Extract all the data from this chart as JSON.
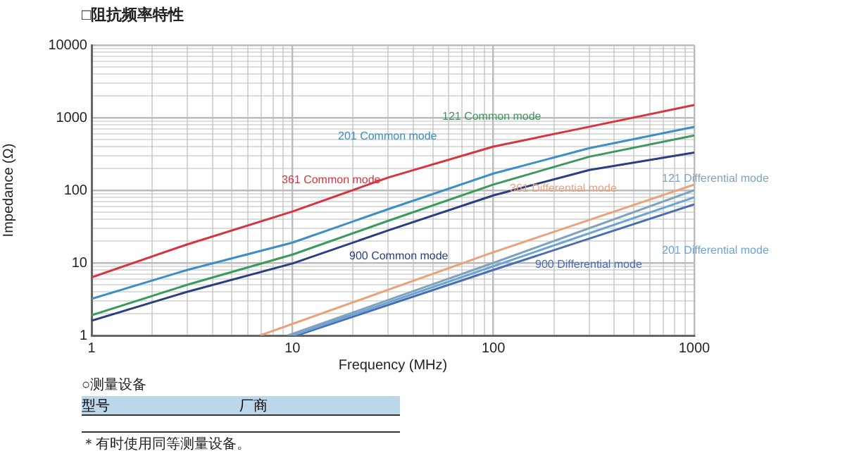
{
  "chart_data": {
    "type": "line",
    "title": "□阻抗频率特性",
    "xlabel": "Frequency (MHz)",
    "ylabel": "Impedance (Ω)",
    "log": "xy",
    "grid": true,
    "legend": false,
    "marker": "none",
    "line_style": "solid",
    "xlim": [
      1,
      1000
    ],
    "ylim": [
      1,
      10000
    ],
    "xticks": [
      1,
      {
        "value": 2,
        "label": null
      },
      {
        "value": 3,
        "label": null
      },
      {
        "value": 4,
        "label": null
      },
      {
        "value": 5,
        "label": null
      },
      {
        "value": 6,
        "label": null
      },
      {
        "value": 7,
        "label": null
      },
      {
        "value": 8,
        "label": null
      },
      {
        "value": 9,
        "label": null
      },
      10,
      {
        "value": 20,
        "label": null
      },
      {
        "value": 30,
        "label": null
      },
      {
        "value": 40,
        "label": null
      },
      {
        "value": 50,
        "label": null
      },
      {
        "value": 60,
        "label": null
      },
      {
        "value": 70,
        "label": null
      },
      {
        "value": 80,
        "label": null
      },
      {
        "value": 90,
        "label": null
      },
      100,
      {
        "value": 200,
        "label": null
      },
      {
        "value": 300,
        "label": null
      },
      {
        "value": 400,
        "label": null
      },
      {
        "value": 500,
        "label": null
      },
      {
        "value": 600,
        "label": null
      },
      {
        "value": 700,
        "label": null
      },
      {
        "value": 800,
        "label": null
      },
      {
        "value": 900,
        "label": null
      },
      1000
    ],
    "yticks": [
      1,
      {
        "value": 2,
        "label": null
      },
      {
        "value": 3,
        "label": null
      },
      {
        "value": 4,
        "label": null
      },
      {
        "value": 5,
        "label": null
      },
      {
        "value": 6,
        "label": null
      },
      {
        "value": 7,
        "label": null
      },
      {
        "value": 8,
        "label": null
      },
      {
        "value": 9,
        "label": null
      },
      10,
      {
        "value": 20,
        "label": null
      },
      {
        "value": 30,
        "label": null
      },
      {
        "value": 40,
        "label": null
      },
      {
        "value": 50,
        "label": null
      },
      {
        "value": 60,
        "label": null
      },
      {
        "value": 70,
        "label": null
      },
      {
        "value": 80,
        "label": null
      },
      {
        "value": 90,
        "label": null
      },
      100,
      {
        "value": 200,
        "label": null
      },
      {
        "value": 300,
        "label": null
      },
      {
        "value": 400,
        "label": null
      },
      {
        "value": 500,
        "label": null
      },
      {
        "value": 600,
        "label": null
      },
      {
        "value": 700,
        "label": null
      },
      {
        "value": 800,
        "label": null
      },
      {
        "value": 900,
        "label": null
      },
      1000,
      {
        "value": 2000,
        "label": null
      },
      {
        "value": 3000,
        "label": null
      },
      {
        "value": 4000,
        "label": null
      },
      {
        "value": 5000,
        "label": null
      },
      {
        "value": 6000,
        "label": null
      },
      {
        "value": 7000,
        "label": null
      },
      {
        "value": 8000,
        "label": null
      },
      {
        "value": 9000,
        "label": null
      },
      10000
    ],
    "series": [
      {
        "name": "361 Common mode",
        "color": "#d6343f",
        "x": [
          1,
          3,
          10,
          30,
          100,
          300,
          1000
        ],
        "values": [
          6.3,
          18,
          51,
          150,
          400,
          750,
          1500
        ]
      },
      {
        "name": "201 Common mode",
        "color": "#3b8fc4",
        "x": [
          1,
          3,
          10,
          30,
          100,
          300,
          1000
        ],
        "values": [
          3.2,
          8,
          19,
          55,
          170,
          380,
          750
        ]
      },
      {
        "name": "121 Common mode",
        "color": "#3a9a5c",
        "x": [
          1,
          3,
          10,
          30,
          100,
          300,
          1000
        ],
        "values": [
          1.9,
          5,
          13,
          38,
          120,
          290,
          570
        ]
      },
      {
        "name": "900 Common mode",
        "color": "#2a3f7f",
        "x": [
          1,
          3,
          10,
          30,
          100,
          300,
          1000
        ],
        "values": [
          1.6,
          4,
          9.8,
          28,
          85,
          190,
          330
        ]
      },
      {
        "name": "361 Differential mode",
        "color": "#e9a27a",
        "x": [
          6.9,
          100,
          1000
        ],
        "values": [
          1,
          14,
          120
        ]
      },
      {
        "name": "121 Differential mode",
        "color": "#7fa3bd",
        "x": [
          9.5,
          100,
          1000
        ],
        "values": [
          1,
          10,
          100
        ]
      },
      {
        "name": "201 Differential mode",
        "color": "#6aa5d6",
        "x": [
          10,
          100,
          1000
        ],
        "values": [
          1,
          9,
          80
        ]
      },
      {
        "name": "900 Differential mode",
        "color": "#4a6fb0",
        "x": [
          10.5,
          100,
          1000
        ],
        "values": [
          1,
          8,
          64
        ]
      }
    ],
    "annotations": [
      "○测量设备",
      "型号",
      "厂商",
      "＊有时使用同等测量设备。"
    ]
  }
}
